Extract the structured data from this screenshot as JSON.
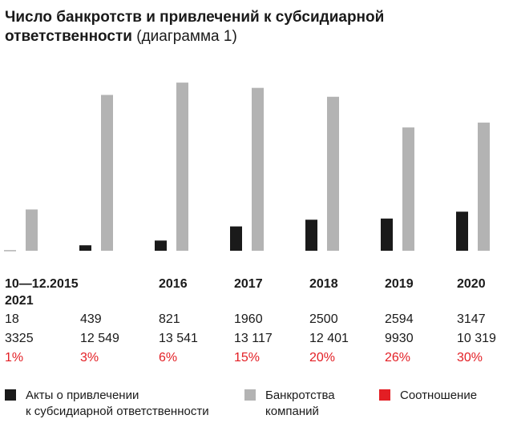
{
  "title": {
    "bold": "Число банкротств и привлечений к субсидиарной ответственности",
    "normal": "(диаграмма 1)"
  },
  "colors": {
    "acts": "#1a1a1a",
    "bankruptcies": "#b3b3b3",
    "ratio": "#e31e24",
    "text": "#1a1a1a"
  },
  "chart_data": {
    "type": "bar",
    "categories": [
      "10—12.2015",
      "2016",
      "2017",
      "2018",
      "2019",
      "2020",
      "2021"
    ],
    "series": [
      {
        "name": "Акты о привлечении к субсидиарной ответственности",
        "values": [
          "18",
          "439",
          "821",
          "1960",
          "2500",
          "2594",
          "3147"
        ]
      },
      {
        "name": "Банкротства компаний",
        "values": [
          "3325",
          "12 549",
          "13 541",
          "13 117",
          "12 401",
          "9930",
          "10 319"
        ]
      },
      {
        "name": "Соотношение",
        "values": [
          "1%",
          "3%",
          "6%",
          "15%",
          "20%",
          "26%",
          "30%"
        ]
      }
    ],
    "ylim": [
      0,
      14000
    ],
    "legend_position": "bottom"
  },
  "legend": {
    "acts_line1": "Акты о привлечении",
    "acts_line2": "к субсидиарной ответственности",
    "bankr_line1": "Банкротства",
    "bankr_line2": "компаний",
    "ratio": "Соотношение"
  }
}
